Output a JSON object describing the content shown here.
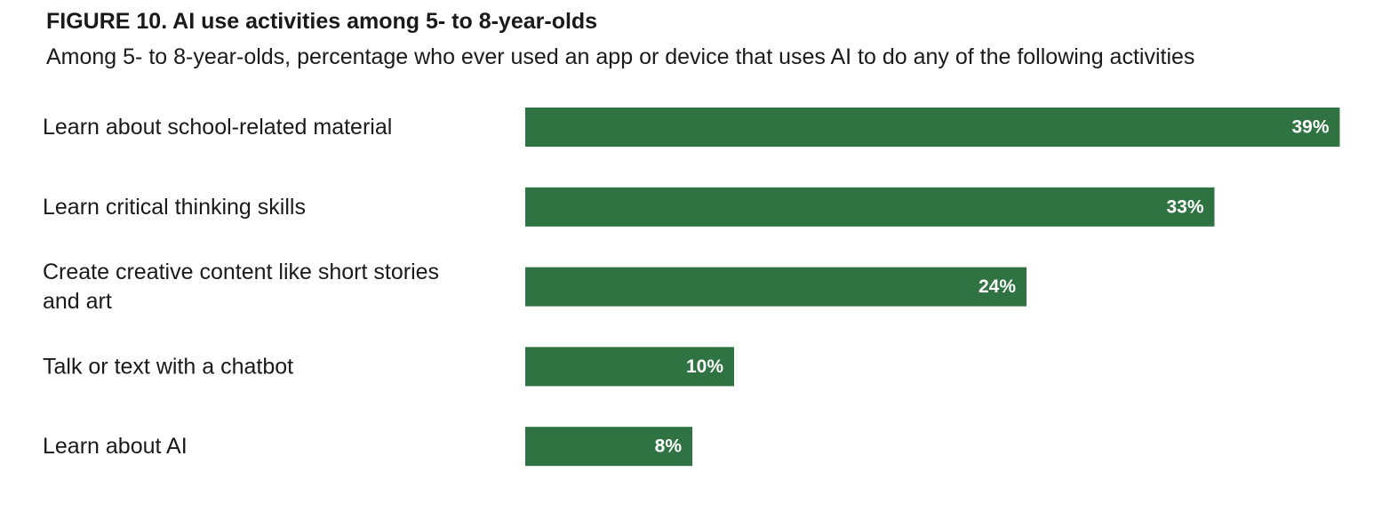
{
  "chart_data": {
    "type": "bar",
    "orientation": "horizontal",
    "title": "FIGURE 10. AI use activities among 5- to 8-year-olds",
    "subtitle": "Among 5- to 8-year-olds, percentage who ever used an app or device that uses AI to do any of the following activities",
    "categories": [
      [
        "Learn about school-related material"
      ],
      [
        "Learn critical thinking skills"
      ],
      [
        "Create creative content like short stories",
        "and art"
      ],
      [
        "Talk or text with a chatbot"
      ],
      [
        "Learn about AI"
      ]
    ],
    "values": [
      39,
      33,
      24,
      10,
      8
    ],
    "value_labels": [
      "39%",
      "33%",
      "24%",
      "10%",
      "8%"
    ],
    "bar_color": "#2e7341",
    "grid": false,
    "legend": "none"
  }
}
